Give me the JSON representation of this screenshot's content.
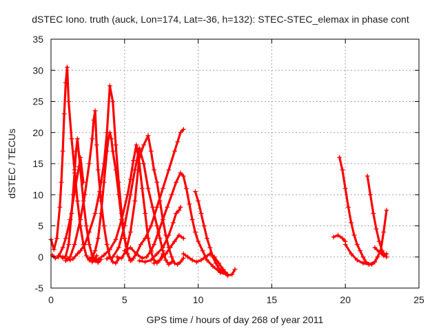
{
  "chart_data": {
    "type": "scatter",
    "title": "dSTEC Iono. truth (auck, Lon=174, Lat=-36, h=132): STEC-STEC_elemax in phase cont",
    "xlabel": "GPS time / hours of day 268 of year 2011",
    "ylabel": "dSTEC  / TECUs",
    "xlim": [
      0,
      25
    ],
    "ylim": [
      -5,
      35
    ],
    "xticks": [
      0,
      5,
      10,
      15,
      20,
      25
    ],
    "yticks": [
      -5,
      0,
      5,
      10,
      15,
      20,
      25,
      30,
      35
    ],
    "grid": true,
    "marker": "+",
    "color": "#ff0000",
    "series": [
      {
        "x": [
          0.0,
          0.2,
          0.4,
          0.6,
          0.7,
          0.8,
          0.9,
          1.0,
          1.1,
          1.2,
          1.4,
          1.6,
          1.8,
          2.0,
          2.2,
          2.4,
          2.6,
          2.8,
          3.0,
          3.1
        ],
        "values": [
          2.8,
          1.2,
          3.0,
          8.0,
          12.0,
          17.0,
          23.0,
          28.0,
          30.5,
          25.0,
          19.0,
          14.0,
          9.0,
          5.0,
          2.0,
          0.2,
          -0.5,
          -0.6,
          -0.3,
          0.2
        ]
      },
      {
        "x": [
          0.8,
          1.0,
          1.2,
          1.4,
          1.5,
          1.6,
          1.7,
          1.8,
          2.0,
          2.2,
          2.4,
          2.6,
          2.8,
          3.0,
          3.2,
          3.4
        ],
        "values": [
          -0.2,
          0.1,
          2.0,
          7.0,
          10.0,
          13.5,
          17.0,
          19.0,
          14.0,
          9.0,
          5.0,
          2.0,
          0.3,
          -0.6,
          -0.9,
          -0.4
        ]
      },
      {
        "x": [
          1.0,
          1.3,
          1.6,
          2.0,
          2.3,
          2.6,
          2.8,
          2.9,
          3.0,
          3.1,
          3.2,
          3.4,
          3.6,
          3.8,
          4.0,
          4.2,
          4.4,
          4.6
        ],
        "values": [
          -0.6,
          0.0,
          2.0,
          6.0,
          10.0,
          15.0,
          19.0,
          22.0,
          23.5,
          18.0,
          14.0,
          9.0,
          5.0,
          2.0,
          0.0,
          -0.8,
          -1.0,
          -0.3
        ]
      },
      {
        "x": [
          0.1,
          0.3,
          0.5,
          0.8,
          1.0,
          1.3,
          1.6,
          1.9,
          2.0,
          2.2
        ],
        "values": [
          0.3,
          -0.2,
          0.0,
          1.5,
          3.0,
          6.0,
          10.5,
          14.5,
          16.0,
          12.0
        ]
      },
      {
        "x": [
          0.5,
          0.8,
          1.1,
          1.3,
          1.5,
          1.8,
          2.0,
          2.3,
          2.6,
          3.0,
          3.3,
          3.6,
          3.8,
          4.0,
          4.2,
          4.4,
          4.6,
          4.8,
          5.0,
          5.2,
          5.4,
          5.6
        ],
        "values": [
          0.2,
          0.0,
          -0.4,
          -0.5,
          -0.3,
          0.5,
          1.0,
          2.0,
          4.0,
          7.0,
          10.5,
          15.0,
          20.0,
          27.5,
          25.0,
          18.0,
          12.0,
          7.0,
          3.0,
          0.5,
          -0.5,
          -0.2
        ]
      },
      {
        "x": [
          2.6,
          2.8,
          3.0,
          3.2,
          3.4,
          3.6,
          3.8,
          3.9,
          4.0,
          4.1,
          4.2,
          4.4,
          4.6,
          4.8,
          5.0,
          5.2,
          5.4
        ],
        "values": [
          -0.3,
          0.0,
          1.0,
          3.0,
          7.0,
          12.0,
          17.0,
          19.0,
          20.0,
          19.0,
          17.0,
          14.0,
          10.0,
          6.0,
          3.0,
          0.5,
          -0.6
        ]
      },
      {
        "x": [
          2.8,
          3.2,
          3.6,
          4.0,
          4.4,
          4.8,
          5.2,
          5.4,
          5.6,
          5.8,
          6.0,
          6.2,
          6.4,
          6.6,
          6.8,
          7.0,
          7.2,
          7.4,
          7.6
        ],
        "values": [
          -0.8,
          -0.4,
          0.3,
          1.2,
          2.8,
          6.0,
          10.0,
          12.5,
          15.5,
          18.0,
          15.0,
          11.0,
          7.0,
          3.0,
          0.8,
          -0.5,
          -1.0,
          -0.5,
          0.5
        ]
      },
      {
        "x": [
          3.8,
          4.2,
          4.6,
          5.0,
          5.4,
          5.7,
          6.0,
          6.3,
          6.6,
          6.9,
          7.2,
          7.4,
          7.6,
          7.8,
          8.0,
          8.2
        ],
        "values": [
          -0.3,
          0.0,
          1.5,
          5.0,
          10.0,
          14.0,
          17.5,
          15.0,
          11.0,
          8.0,
          5.0,
          3.0,
          1.0,
          -0.5,
          -1.2,
          -0.8
        ]
      },
      {
        "x": [
          4.5,
          4.8,
          5.1,
          5.4,
          5.7,
          6.0,
          6.3,
          6.6,
          6.8,
          7.0,
          7.2,
          7.4,
          7.6,
          7.8,
          8.0,
          8.2,
          8.4,
          8.6,
          8.8,
          9.0
        ],
        "values": [
          0.0,
          -0.2,
          1.0,
          4.0,
          9.0,
          16.0,
          18.0,
          19.5,
          17.0,
          14.0,
          12.0,
          9.0,
          6.0,
          3.5,
          1.5,
          0.0,
          -1.0,
          -1.2,
          -0.8,
          -0.2
        ]
      },
      {
        "x": [
          5.0,
          5.4,
          5.8,
          6.2,
          6.5,
          6.8,
          7.0,
          7.3,
          7.6,
          7.9,
          8.2,
          8.5,
          8.8,
          9.0,
          9.2,
          9.4,
          9.6,
          9.8,
          10.0,
          10.3,
          10.6,
          11.0,
          11.5,
          12.0
        ],
        "values": [
          1.0,
          1.5,
          0.5,
          -0.2,
          0.0,
          1.0,
          2.0,
          4.0,
          6.0,
          8.0,
          10.0,
          12.0,
          13.5,
          13.0,
          11.0,
          8.5,
          6.0,
          4.0,
          2.5,
          1.0,
          -0.5,
          -1.5,
          -2.5,
          -2.8
        ]
      },
      {
        "x": [
          5.5,
          5.8,
          6.1,
          6.4,
          6.8,
          7.2,
          7.6,
          8.0,
          8.4,
          8.6,
          8.8,
          9.0
        ],
        "values": [
          -0.5,
          0.5,
          2.0,
          3.0,
          5.0,
          8.0,
          11.0,
          14.0,
          17.0,
          18.5,
          20.0,
          20.5
        ]
      },
      {
        "x": [
          6.0,
          6.4,
          6.8,
          7.2,
          7.6,
          8.0,
          8.3,
          8.5,
          8.7,
          8.8
        ],
        "values": [
          -0.6,
          -0.8,
          -0.5,
          0.5,
          1.5,
          3.5,
          5.5,
          7.0,
          7.5,
          8.0
        ]
      },
      {
        "x": [
          7.0,
          7.4,
          7.8,
          8.1,
          8.4,
          8.7,
          9.0
        ],
        "values": [
          -1.0,
          -0.5,
          0.5,
          1.5,
          2.5,
          3.5,
          3.0
        ]
      },
      {
        "x": [
          9.8,
          10.0,
          10.2,
          10.4,
          10.6,
          10.8,
          11.0,
          11.2,
          11.4,
          11.7,
          12.0,
          12.3,
          12.5
        ],
        "values": [
          10.5,
          9.0,
          7.0,
          5.0,
          3.0,
          1.5,
          0.0,
          -1.0,
          -1.8,
          -2.5,
          -3.0,
          -2.8,
          -2.0
        ]
      },
      {
        "x": [
          9.0,
          9.3,
          9.6,
          9.9,
          10.2,
          10.5,
          10.8,
          11.1,
          11.4,
          11.7,
          12.0
        ],
        "values": [
          0.5,
          0.0,
          -0.5,
          -0.8,
          -0.5,
          0.0,
          0.5,
          0.0,
          -1.0,
          -2.0,
          -2.8
        ]
      },
      {
        "x": [
          19.2,
          19.5,
          19.8,
          20.0
        ],
        "values": [
          3.2,
          3.5,
          3.0,
          2.5
        ]
      },
      {
        "x": [
          19.6,
          19.8,
          20.0,
          20.2,
          20.4,
          20.6,
          20.8,
          21.0,
          21.2,
          21.4,
          21.6,
          21.8,
          22.0,
          22.2
        ],
        "values": [
          16.0,
          14.0,
          11.0,
          8.0,
          5.5,
          3.5,
          2.0,
          1.0,
          0.0,
          -0.8,
          -1.2,
          -1.2,
          -0.8,
          0.0
        ]
      },
      {
        "x": [
          20.0,
          20.4,
          20.8,
          21.2,
          21.6,
          22.0,
          22.4,
          22.6,
          22.8
        ],
        "values": [
          2.0,
          0.5,
          -0.5,
          -1.0,
          -1.2,
          -0.8,
          1.0,
          4.0,
          7.5
        ]
      },
      {
        "x": [
          21.5,
          21.7,
          21.9,
          22.1,
          22.3,
          22.5,
          22.7,
          22.8
        ],
        "values": [
          13.0,
          10.0,
          7.0,
          4.5,
          2.5,
          1.0,
          0.3,
          0.0
        ]
      },
      {
        "x": [
          22.0,
          22.3,
          22.6,
          22.8
        ],
        "values": [
          1.5,
          0.8,
          0.2,
          0.5
        ]
      }
    ]
  }
}
